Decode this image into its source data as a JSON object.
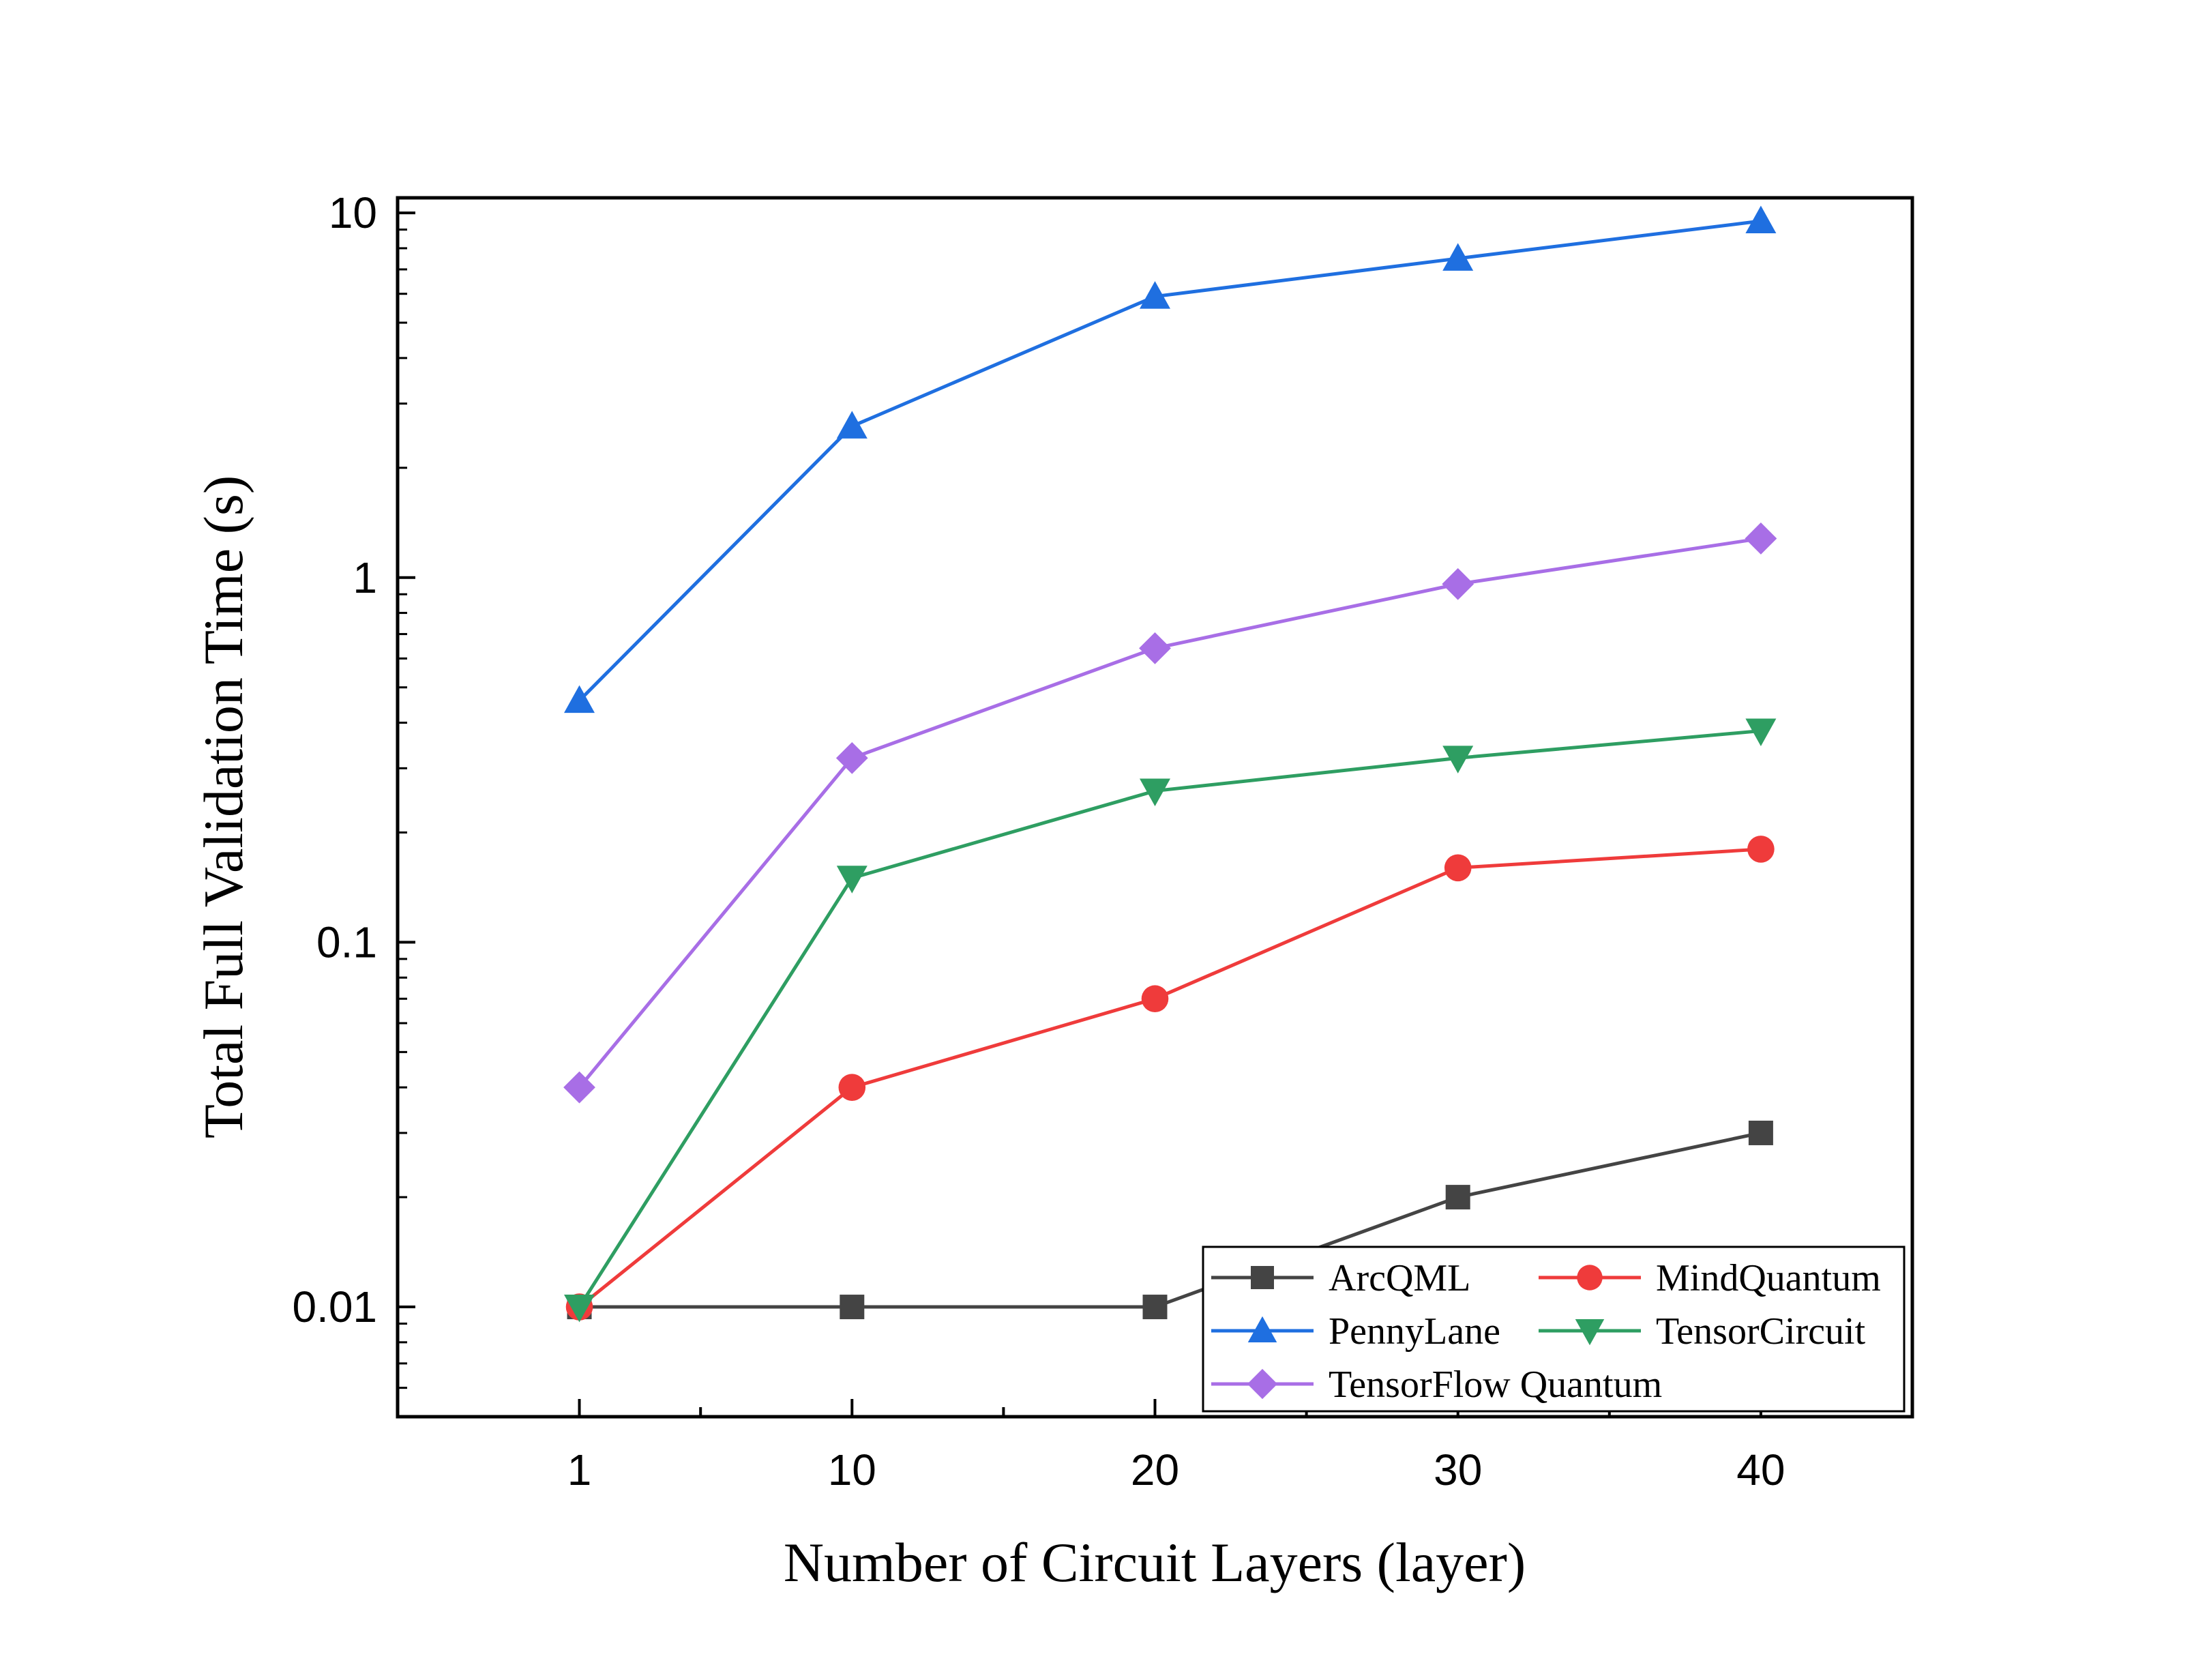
{
  "chart_data": {
    "type": "line",
    "title": "",
    "xlabel": "Number of Circuit Layers (layer)",
    "ylabel": "Total Full Validation Time (s)",
    "x_scale": "linear",
    "y_scale": "log",
    "xlim": [
      -5,
      45
    ],
    "ylim": [
      0.005,
      11
    ],
    "x_ticks": [
      1,
      10,
      20,
      30,
      40
    ],
    "x_tick_labels": [
      "1",
      "10",
      "20",
      "30",
      "40"
    ],
    "y_ticks": [
      0.01,
      0.1,
      1,
      10
    ],
    "y_tick_labels": [
      "0.01",
      "0.1",
      "1",
      "10"
    ],
    "x": [
      1,
      10,
      20,
      30,
      40
    ],
    "grid": false,
    "legend_position": "bottom-right",
    "series": [
      {
        "name": "ArcQML",
        "color": "#444444",
        "marker": "square",
        "values": [
          0.01,
          0.01,
          0.01,
          0.02,
          0.03
        ]
      },
      {
        "name": "MindQuantum",
        "color": "#ef3b3b",
        "marker": "circle",
        "values": [
          0.01,
          0.04,
          0.07,
          0.16,
          0.18
        ]
      },
      {
        "name": "PennyLane",
        "color": "#1f6fe0",
        "marker": "triangle-up",
        "values": [
          0.46,
          2.6,
          5.9,
          7.5,
          9.5
        ]
      },
      {
        "name": "TensorCircuit",
        "color": "#2e9e62",
        "marker": "triangle-down",
        "values": [
          0.01,
          0.15,
          0.26,
          0.32,
          0.38
        ]
      },
      {
        "name": "TensorFlow Quantum",
        "color": "#a86ee6",
        "marker": "diamond",
        "values": [
          0.04,
          0.32,
          0.64,
          0.96,
          1.28
        ]
      }
    ]
  }
}
